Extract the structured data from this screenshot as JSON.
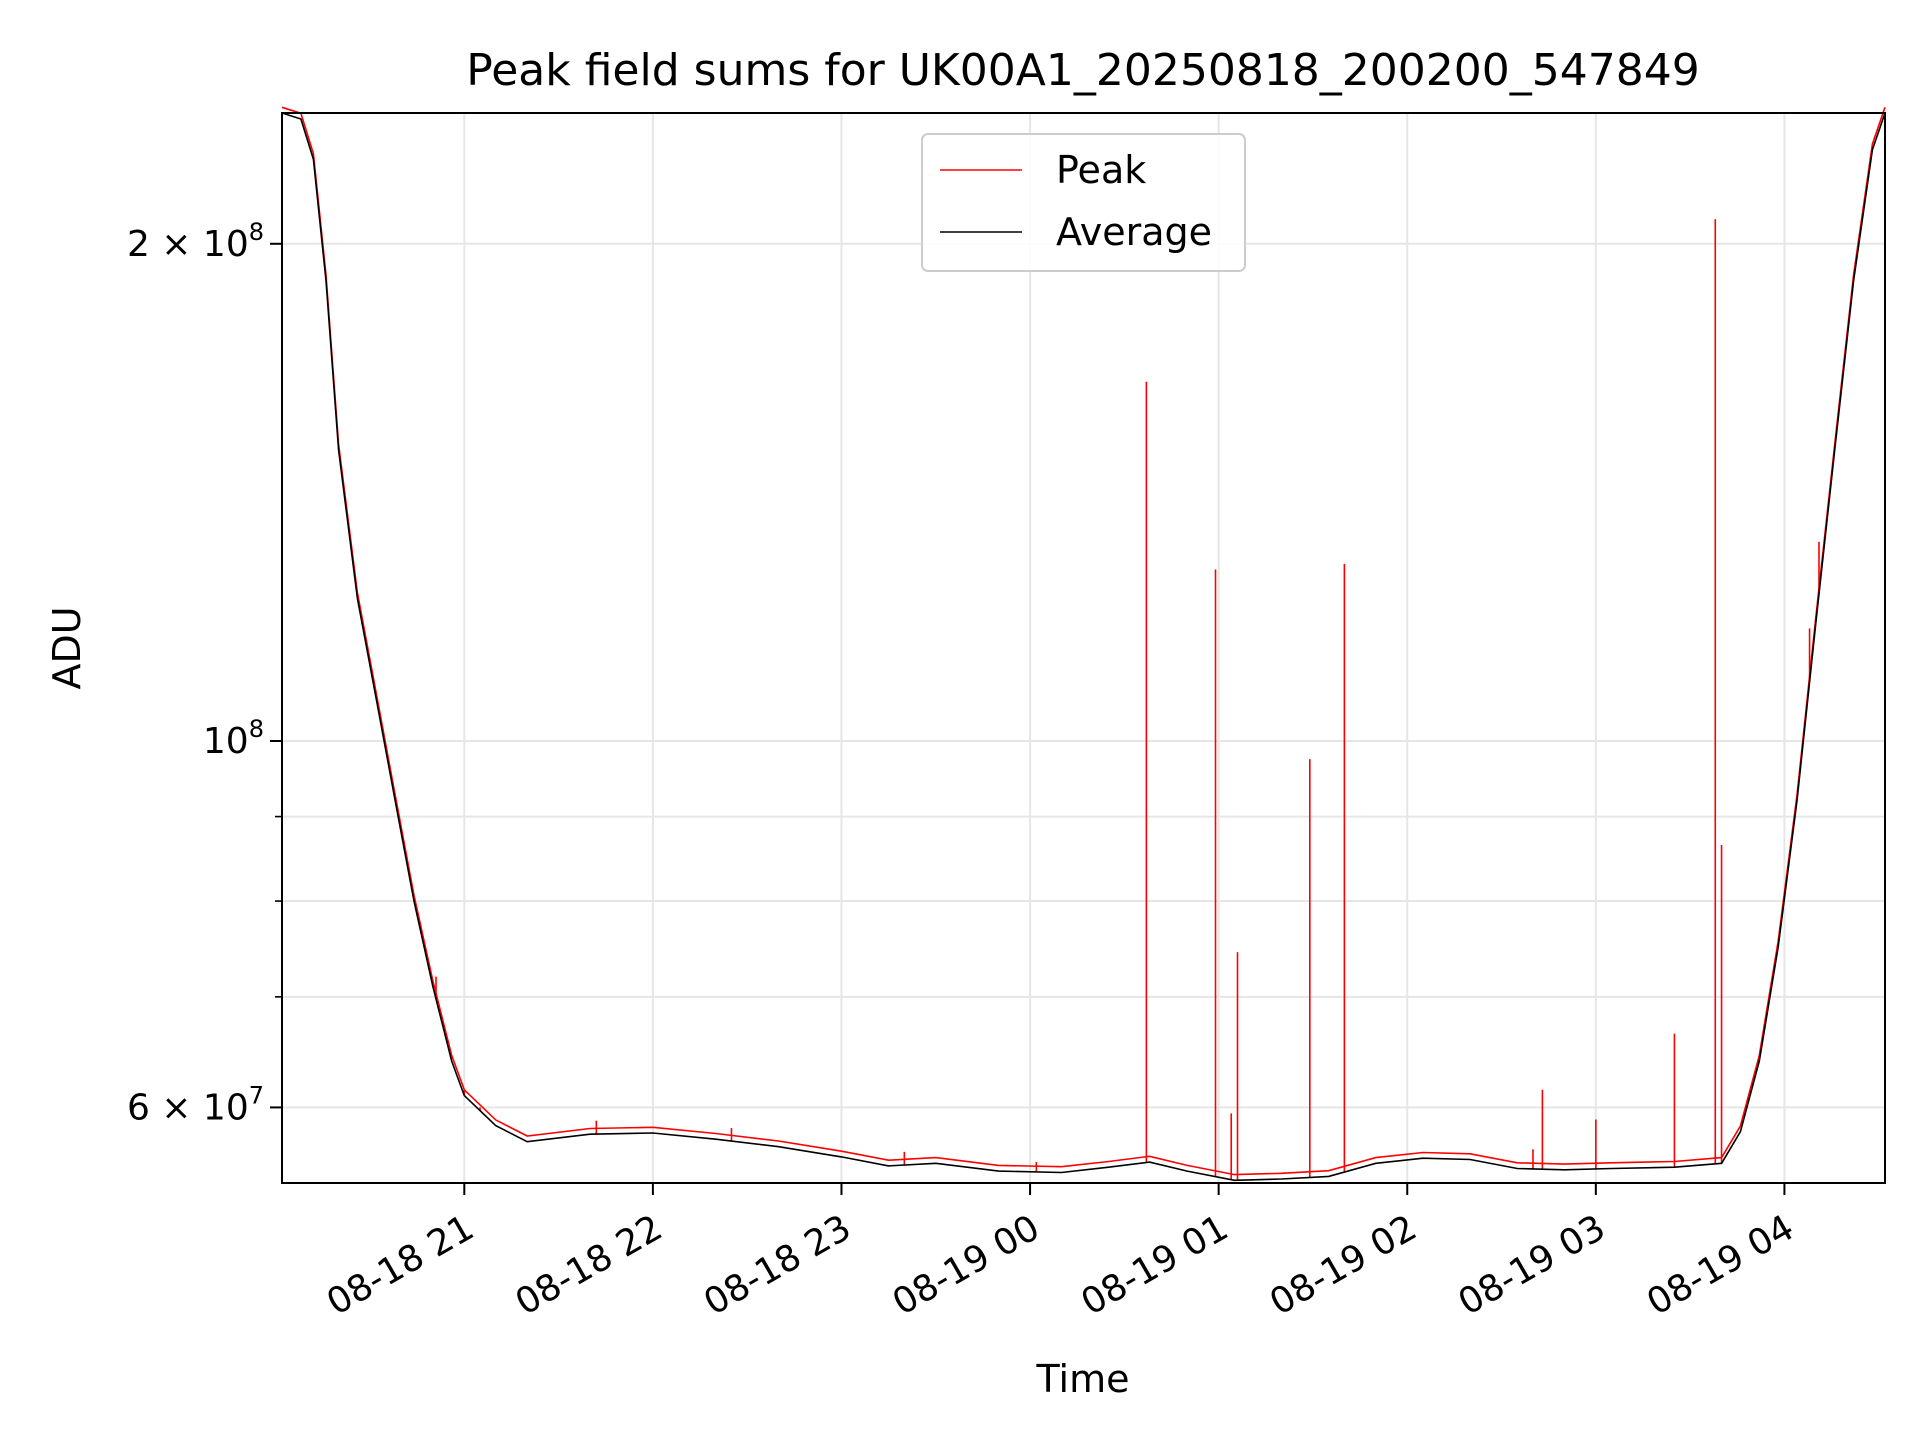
{
  "chart_data": {
    "type": "line",
    "title": "Peak field sums for UK00A1_20250818_200200_547849",
    "xlabel": "Time",
    "ylabel": "ADU",
    "yscale": "log",
    "xlim": [
      "2025-08-18 20:02",
      "2025-08-19 04:32"
    ],
    "ylim": [
      54000000,
      240000000
    ],
    "grid": true,
    "legend_position": "top-center",
    "x_ticks": [
      {
        "t": "2025-08-18 21:00",
        "label": "08-18 21"
      },
      {
        "t": "2025-08-18 22:00",
        "label": "08-18 22"
      },
      {
        "t": "2025-08-18 23:00",
        "label": "08-18 23"
      },
      {
        "t": "2025-08-19 00:00",
        "label": "08-19 00"
      },
      {
        "t": "2025-08-19 01:00",
        "label": "08-19 01"
      },
      {
        "t": "2025-08-19 02:00",
        "label": "08-19 02"
      },
      {
        "t": "2025-08-19 03:00",
        "label": "08-19 03"
      },
      {
        "t": "2025-08-19 04:00",
        "label": "08-19 04"
      }
    ],
    "y_ticks_major": [
      {
        "v": 200000000,
        "base": "2 × 10",
        "exp": "8"
      },
      {
        "v": 100000000,
        "base": "10",
        "exp": "8"
      },
      {
        "v": 60000000,
        "base": "6 × 10",
        "exp": "7"
      }
    ],
    "y_ticks_minor": [
      90000000,
      80000000,
      70000000
    ],
    "series": [
      {
        "name": "Average",
        "color": "#000000",
        "points": [
          [
            "2025-08-18 20:02",
            240000000
          ],
          [
            "2025-08-18 20:08",
            238000000
          ],
          [
            "2025-08-18 20:12",
            225000000
          ],
          [
            "2025-08-18 20:16",
            190000000
          ],
          [
            "2025-08-18 20:20",
            150000000
          ],
          [
            "2025-08-18 20:26",
            122000000
          ],
          [
            "2025-08-18 20:32",
            106000000
          ],
          [
            "2025-08-18 20:38",
            92000000
          ],
          [
            "2025-08-18 20:44",
            80000000
          ],
          [
            "2025-08-18 20:50",
            71000000
          ],
          [
            "2025-08-18 20:56",
            64000000
          ],
          [
            "2025-08-18 21:00",
            61000000
          ],
          [
            "2025-08-18 21:10",
            58500000
          ],
          [
            "2025-08-18 21:20",
            57200000
          ],
          [
            "2025-08-18 21:40",
            57800000
          ],
          [
            "2025-08-18 22:00",
            57900000
          ],
          [
            "2025-08-18 22:20",
            57400000
          ],
          [
            "2025-08-18 22:40",
            56800000
          ],
          [
            "2025-08-18 23:00",
            56000000
          ],
          [
            "2025-08-18 23:15",
            55300000
          ],
          [
            "2025-08-18 23:30",
            55500000
          ],
          [
            "2025-08-18 23:50",
            54900000
          ],
          [
            "2025-08-19 00:10",
            54800000
          ],
          [
            "2025-08-19 00:25",
            55200000
          ],
          [
            "2025-08-19 00:38",
            55600000
          ],
          [
            "2025-08-19 00:50",
            54900000
          ],
          [
            "2025-08-19 01:05",
            54200000
          ],
          [
            "2025-08-19 01:20",
            54300000
          ],
          [
            "2025-08-19 01:35",
            54500000
          ],
          [
            "2025-08-19 01:50",
            55500000
          ],
          [
            "2025-08-19 02:05",
            55900000
          ],
          [
            "2025-08-19 02:20",
            55800000
          ],
          [
            "2025-08-19 02:35",
            55100000
          ],
          [
            "2025-08-19 02:50",
            55000000
          ],
          [
            "2025-08-19 03:05",
            55100000
          ],
          [
            "2025-08-19 03:25",
            55200000
          ],
          [
            "2025-08-19 03:40",
            55500000
          ],
          [
            "2025-08-19 03:46",
            58000000
          ],
          [
            "2025-08-19 03:52",
            64000000
          ],
          [
            "2025-08-19 03:58",
            75000000
          ],
          [
            "2025-08-19 04:04",
            92000000
          ],
          [
            "2025-08-19 04:10",
            118000000
          ],
          [
            "2025-08-19 04:16",
            150000000
          ],
          [
            "2025-08-19 04:22",
            190000000
          ],
          [
            "2025-08-19 04:28",
            228000000
          ],
          [
            "2025-08-19 04:32",
            240000000
          ]
        ]
      },
      {
        "name": "Peak",
        "color": "#ff0000",
        "spikes": [
          [
            "2025-08-18 20:51",
            72000000
          ],
          [
            "2025-08-18 21:00",
            61500000
          ],
          [
            "2025-08-18 21:05",
            60000000
          ],
          [
            "2025-08-18 21:42",
            58900000
          ],
          [
            "2025-08-18 22:25",
            58300000
          ],
          [
            "2025-08-18 23:20",
            56400000
          ],
          [
            "2025-08-19 00:02",
            55600000
          ],
          [
            "2025-08-19 00:37",
            165000000
          ],
          [
            "2025-08-19 00:59",
            127000000
          ],
          [
            "2025-08-19 01:04",
            59500000
          ],
          [
            "2025-08-19 01:06",
            74500000
          ],
          [
            "2025-08-19 01:29",
            97500000
          ],
          [
            "2025-08-19 01:40",
            128000000
          ],
          [
            "2025-08-19 02:40",
            56600000
          ],
          [
            "2025-08-19 02:43",
            61500000
          ],
          [
            "2025-08-19 03:00",
            59000000
          ],
          [
            "2025-08-19 03:25",
            66500000
          ],
          [
            "2025-08-19 03:38",
            207000000
          ],
          [
            "2025-08-19 03:40",
            86500000
          ],
          [
            "2025-08-19 04:08",
            117000000
          ],
          [
            "2025-08-19 04:11",
            132000000
          ]
        ]
      }
    ]
  }
}
